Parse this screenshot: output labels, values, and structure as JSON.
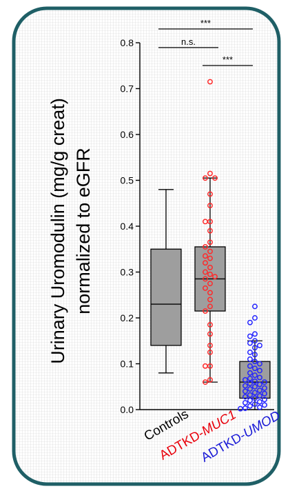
{
  "chart_data": {
    "type": "box",
    "ylabel_line1": "Urinary Uromodulin (mg/g creat)",
    "ylabel_line2": "normalized to eGFR",
    "ylim": [
      0,
      0.8
    ],
    "yticks": [
      0.0,
      0.1,
      0.2,
      0.3,
      0.4,
      0.5,
      0.6,
      0.7,
      0.8
    ],
    "ytick_labels": [
      "0.0",
      "0.1",
      "0.2",
      "0.3",
      "0.4",
      "0.5",
      "0.6",
      "0.7",
      "0.8"
    ],
    "grid": true,
    "categories": [
      {
        "label": "Controls",
        "label_color": "#000000"
      },
      {
        "label": "ADTKD-",
        "italic_part": "MUC1",
        "label_color": "#e8000b"
      },
      {
        "label": "ADTKD-",
        "italic_part": "UMOD",
        "label_color": "#1a1ad6"
      }
    ],
    "boxes": [
      {
        "name": "Controls",
        "whisker_low": 0.08,
        "q1": 0.14,
        "median": 0.23,
        "q3": 0.35,
        "whisker_high": 0.48,
        "box_color": "#9e9e9e",
        "points": []
      },
      {
        "name": "ADTKD-MUC1",
        "whisker_low": 0.06,
        "q1": 0.215,
        "median": 0.285,
        "q3": 0.355,
        "whisker_high": 0.505,
        "box_color": "#9e9e9e",
        "point_color": "#ff2a2a",
        "points": [
          0.715,
          0.515,
          0.505,
          0.505,
          0.47,
          0.445,
          0.41,
          0.41,
          0.39,
          0.365,
          0.355,
          0.345,
          0.335,
          0.33,
          0.32,
          0.31,
          0.3,
          0.295,
          0.29,
          0.285,
          0.275,
          0.265,
          0.255,
          0.24,
          0.225,
          0.215,
          0.185,
          0.165,
          0.14,
          0.125,
          0.095,
          0.095,
          0.065,
          0.06
        ]
      },
      {
        "name": "ADTKD-UMOD",
        "whisker_low": 0.0,
        "q1": 0.025,
        "median": 0.06,
        "q3": 0.105,
        "whisker_high": 0.15,
        "box_color": "#9e9e9e",
        "point_color": "#2323ff",
        "points": [
          0.225,
          0.2,
          0.19,
          0.165,
          0.16,
          0.15,
          0.145,
          0.14,
          0.135,
          0.125,
          0.12,
          0.11,
          0.105,
          0.1,
          0.095,
          0.09,
          0.085,
          0.08,
          0.075,
          0.07,
          0.068,
          0.065,
          0.062,
          0.06,
          0.057,
          0.055,
          0.052,
          0.05,
          0.047,
          0.045,
          0.042,
          0.04,
          0.037,
          0.035,
          0.032,
          0.03,
          0.028,
          0.025,
          0.022,
          0.02,
          0.017,
          0.015,
          0.012,
          0.01,
          0.008,
          0.005,
          0.003,
          0.002
        ]
      }
    ],
    "significance": [
      {
        "from": 0,
        "to": 2,
        "label": "***"
      },
      {
        "from": 0,
        "to": 1,
        "label": "n.s."
      },
      {
        "from": 1,
        "to": 2,
        "label": "***"
      }
    ]
  },
  "colors": {
    "frame": "#1f5f66",
    "grid": "#c9c9c9",
    "box_fill": "#9e9e9e"
  }
}
